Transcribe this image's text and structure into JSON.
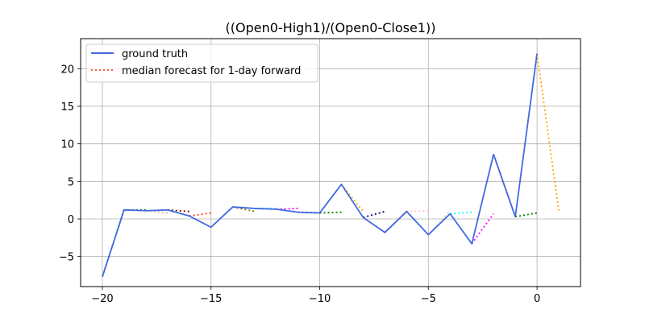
{
  "chart_data": {
    "type": "line",
    "title": "((Open0-High1)/(Open0-Close1))",
    "xlabel": "",
    "ylabel": "",
    "xlim": [
      -21,
      2
    ],
    "ylim": [
      -9,
      24
    ],
    "xticks": [
      -20,
      -15,
      -10,
      -5,
      0
    ],
    "yticks": [
      -5,
      0,
      5,
      10,
      15,
      20
    ],
    "xtick_labels": [
      "−20",
      "−15",
      "−10",
      "−5",
      "0"
    ],
    "ytick_labels": [
      "−5",
      "0",
      "5",
      "10",
      "15",
      "20"
    ],
    "grid": true,
    "legend_position": "upper-left",
    "legend": [
      {
        "label": "ground truth",
        "color": "#4169e1",
        "style": "solid"
      },
      {
        "label": "median forecast for 1-day forward",
        "color": "#ff6347",
        "style": "dotted"
      }
    ],
    "ground_truth": {
      "name": "ground truth",
      "color": "#4169e1",
      "x": [
        -20,
        -19,
        -18,
        -17,
        -16,
        -15,
        -14,
        -13,
        -12,
        -11,
        -10,
        -9,
        -8,
        -7,
        -6,
        -5,
        -4,
        -3,
        -2,
        -1,
        0
      ],
      "y": [
        -7.7,
        1.2,
        1.1,
        1.2,
        0.4,
        -1.1,
        1.6,
        1.4,
        1.3,
        0.9,
        0.8,
        4.6,
        0.2,
        -1.8,
        1.0,
        -2.1,
        0.7,
        -3.3,
        8.6,
        0.3,
        22.0
      ]
    },
    "forecasts": [
      {
        "color": "#2e8b57",
        "x": [
          -20,
          -19
        ],
        "y": [
          -7.7,
          1.3
        ]
      },
      {
        "color": "#008000",
        "x": [
          -19,
          -18
        ],
        "y": [
          1.2,
          1.2
        ]
      },
      {
        "color": "#d2b48c",
        "x": [
          -18,
          -17
        ],
        "y": [
          1.1,
          0.8
        ]
      },
      {
        "color": "#8b0000",
        "x": [
          -17,
          -16
        ],
        "y": [
          1.2,
          1.0
        ]
      },
      {
        "color": "#ff4500",
        "x": [
          -16,
          -15
        ],
        "y": [
          0.4,
          0.8
        ]
      },
      {
        "color": "#87ceeb",
        "x": [
          -15,
          -14
        ],
        "y": [
          -1.1,
          1.6
        ]
      },
      {
        "color": "#808000",
        "x": [
          -14,
          -13
        ],
        "y": [
          1.6,
          1.0
        ]
      },
      {
        "color": "#00ffff",
        "x": [
          -13,
          -12
        ],
        "y": [
          1.4,
          1.4
        ]
      },
      {
        "color": "#ff00ff",
        "x": [
          -12,
          -11
        ],
        "y": [
          1.3,
          1.4
        ]
      },
      {
        "color": "#000080",
        "x": [
          -11,
          -10
        ],
        "y": [
          0.9,
          0.8
        ]
      },
      {
        "color": "#008000",
        "x": [
          -10,
          -9
        ],
        "y": [
          0.8,
          0.9
        ]
      },
      {
        "color": "#ffa500",
        "x": [
          -9,
          -8
        ],
        "y": [
          4.6,
          1.0
        ]
      },
      {
        "color": "#000080",
        "x": [
          -8,
          -7
        ],
        "y": [
          0.2,
          1.0
        ]
      },
      {
        "color": "#a52a2a",
        "x": [
          -7,
          -6
        ],
        "y": [
          -1.8,
          1.0
        ]
      },
      {
        "color": "#ffc0cb",
        "x": [
          -6,
          -5
        ],
        "y": [
          1.0,
          1.1
        ]
      },
      {
        "color": "#d3d3d3",
        "x": [
          -5,
          -4
        ],
        "y": [
          -2.1,
          1.1
        ]
      },
      {
        "color": "#00ffff",
        "x": [
          -4,
          -3
        ],
        "y": [
          0.7,
          0.9
        ]
      },
      {
        "color": "#ff00ff",
        "x": [
          -3,
          -2
        ],
        "y": [
          -3.3,
          0.7
        ]
      },
      {
        "color": "#ff4500",
        "x": [
          -2,
          -1
        ],
        "y": [
          8.6,
          0.3
        ]
      },
      {
        "color": "#008000",
        "x": [
          -1,
          0
        ],
        "y": [
          0.3,
          0.8
        ]
      },
      {
        "color": "#ffa500",
        "x": [
          0,
          1
        ],
        "y": [
          22.0,
          1.1
        ]
      }
    ]
  }
}
